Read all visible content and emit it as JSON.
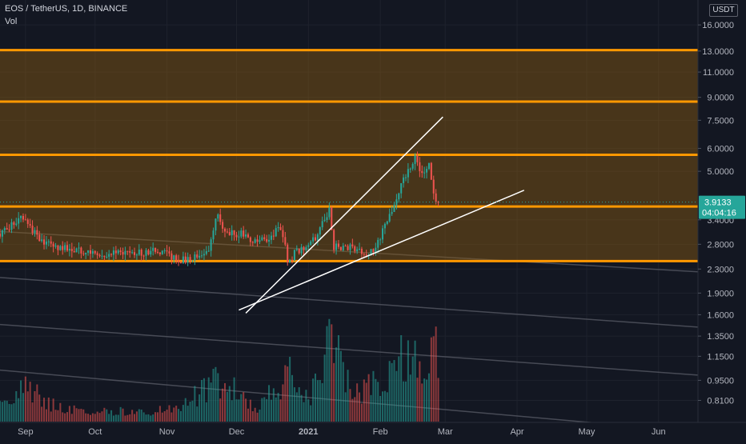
{
  "header": {
    "symbol_title": "EOS / TetherUS, 1D, BINANCE",
    "volume_label": "Vol",
    "currency": "USDT"
  },
  "chart_data": {
    "type": "candlestick",
    "title": "EOS / TetherUS, 1D, BINANCE",
    "y_scale": "log",
    "ylim": [
      0.68,
      19.5
    ],
    "y_ticks": [
      "16.0000",
      "13.0000",
      "11.0000",
      "9.0000",
      "7.5000",
      "6.0000",
      "5.0000",
      "3.4000",
      "2.8000",
      "2.3000",
      "1.9000",
      "1.6000",
      "1.3500",
      "1.1500",
      "0.9500",
      "0.8100"
    ],
    "y_tick_values": [
      16,
      13,
      11,
      9,
      7.5,
      6,
      5,
      3.4,
      2.8,
      2.3,
      1.9,
      1.6,
      1.35,
      1.15,
      0.95,
      0.81
    ],
    "x_ticks": [
      "Sep",
      "Oct",
      "Nov",
      "Dec",
      "2021",
      "Feb",
      "Mar",
      "Apr",
      "May",
      "Jun"
    ],
    "x_tick_dates": [
      "2020-09-01",
      "2020-10-01",
      "2020-11-01",
      "2020-12-01",
      "2021-01-01",
      "2021-02-01",
      "2021-03-01",
      "2021-04-01",
      "2021-05-01",
      "2021-06-01"
    ],
    "x_range": [
      "2020-08-21",
      "2021-06-18"
    ],
    "last_price": "3.9133",
    "countdown": "04:04:16",
    "colors": {
      "up": "#26a69a",
      "down": "#ef5350",
      "zone_line": "#ff9800",
      "zone_fill": "#8a5a12",
      "trendline": "#ffffff",
      "background": "#131722"
    },
    "horizontal_levels": [
      13.1,
      8.7,
      5.7,
      3.78,
      2.45
    ],
    "highlighted_zones": [
      [
        2.45,
        13.1
      ]
    ],
    "trendlines": [
      {
        "from": [
          "2020-12-05",
          1.62
        ],
        "to": [
          "2021-02-28",
          7.7
        ]
      },
      {
        "from": [
          "2020-12-02",
          1.66
        ],
        "to": [
          "2021-04-04",
          4.3
        ]
      }
    ],
    "faded_lines": [
      {
        "from": [
          "2020-08-21",
          3.1
        ],
        "to": [
          "2021-06-18",
          2.25
        ]
      },
      {
        "from": [
          "2020-08-21",
          2.15
        ],
        "to": [
          "2021-06-18",
          1.45
        ]
      },
      {
        "from": [
          "2020-08-21",
          1.48
        ],
        "to": [
          "2021-06-18",
          0.99
        ]
      },
      {
        "from": [
          "2020-08-21",
          1.03
        ],
        "to": [
          "2021-06-18",
          0.63
        ]
      }
    ],
    "price_path": [
      [
        "2020-08-21",
        3.05
      ],
      [
        "2020-08-26",
        3.25
      ],
      [
        "2020-08-31",
        3.5
      ],
      [
        "2020-09-03",
        3.25
      ],
      [
        "2020-09-07",
        2.85
      ],
      [
        "2020-09-14",
        2.75
      ],
      [
        "2020-09-21",
        2.7
      ],
      [
        "2020-09-28",
        2.6
      ],
      [
        "2020-10-05",
        2.55
      ],
      [
        "2020-10-12",
        2.65
      ],
      [
        "2020-10-19",
        2.6
      ],
      [
        "2020-10-26",
        2.65
      ],
      [
        "2020-11-02",
        2.6
      ],
      [
        "2020-11-05",
        2.45
      ],
      [
        "2020-11-12",
        2.5
      ],
      [
        "2020-11-19",
        2.7
      ],
      [
        "2020-11-23",
        3.55
      ],
      [
        "2020-11-26",
        3.05
      ],
      [
        "2020-12-03",
        3.05
      ],
      [
        "2020-12-10",
        2.85
      ],
      [
        "2020-12-15",
        2.95
      ],
      [
        "2020-12-19",
        3.2
      ],
      [
        "2020-12-22",
        2.85
      ],
      [
        "2020-12-23",
        2.35
      ],
      [
        "2020-12-26",
        2.6
      ],
      [
        "2020-12-31",
        2.75
      ],
      [
        "2021-01-04",
        2.95
      ],
      [
        "2021-01-08",
        3.45
      ],
      [
        "2021-01-10",
        3.7
      ],
      [
        "2021-01-12",
        2.75
      ],
      [
        "2021-01-18",
        2.75
      ],
      [
        "2021-01-25",
        2.6
      ],
      [
        "2021-01-27",
        2.55
      ],
      [
        "2021-02-01",
        2.95
      ],
      [
        "2021-02-05",
        3.5
      ],
      [
        "2021-02-08",
        3.95
      ],
      [
        "2021-02-10",
        4.55
      ],
      [
        "2021-02-14",
        5.1
      ],
      [
        "2021-02-16",
        5.6
      ],
      [
        "2021-02-19",
        4.8
      ],
      [
        "2021-02-22",
        5.3
      ],
      [
        "2021-02-24",
        4.15
      ],
      [
        "2021-02-26",
        3.9
      ]
    ],
    "volume_path": [
      [
        "2020-08-21",
        0.15
      ],
      [
        "2020-09-01",
        0.32
      ],
      [
        "2020-09-15",
        0.12
      ],
      [
        "2020-10-01",
        0.1
      ],
      [
        "2020-10-20",
        0.09
      ],
      [
        "2020-11-05",
        0.12
      ],
      [
        "2020-11-24",
        0.38
      ],
      [
        "2020-12-10",
        0.12
      ],
      [
        "2020-12-23",
        0.42
      ],
      [
        "2021-01-01",
        0.2
      ],
      [
        "2021-01-11",
        0.75
      ],
      [
        "2021-01-20",
        0.25
      ],
      [
        "2021-02-01",
        0.35
      ],
      [
        "2021-02-10",
        0.6
      ],
      [
        "2021-02-20",
        0.45
      ],
      [
        "2021-02-25",
        0.85
      ],
      [
        "2021-02-27",
        0.22
      ]
    ],
    "volume_spikes": [
      [
        "2021-01-08",
        0.62
      ],
      [
        "2021-01-10",
        0.95
      ],
      [
        "2021-01-14",
        0.8
      ],
      [
        "2021-01-18",
        0.48
      ],
      [
        "2021-02-10",
        0.8
      ],
      [
        "2021-02-16",
        0.75
      ],
      [
        "2021-02-23",
        0.78
      ],
      [
        "2021-02-25",
        0.88
      ],
      [
        "2020-12-24",
        0.6
      ]
    ]
  }
}
